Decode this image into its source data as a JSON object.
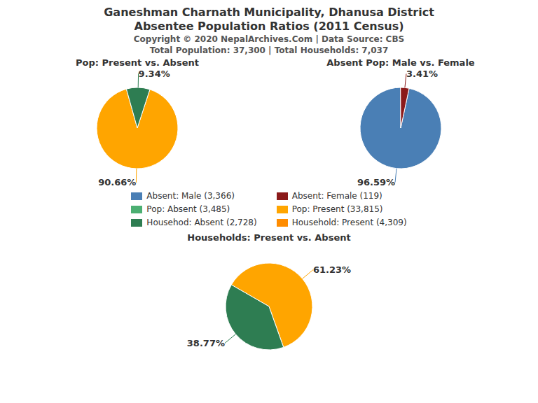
{
  "title": "Ganeshman Charnath Municipality, Dhanusa District\nAbsentee Population Ratios (2011 Census)",
  "annotations": [
    "Copyright © 2020 NepalArchives.Com | Data Source: CBS",
    "Total Population: 37,300 | Total Households: 7,037"
  ],
  "series": [
    {
      "name": "Absent: Male (3,366)",
      "color": "#4A7FB5"
    },
    {
      "name": "Absent: Female (119)",
      "color": "#8B1A1A"
    },
    {
      "name": "Pop: Absent (3,485)",
      "color": "#4CAF72"
    },
    {
      "name": "Pop: Present (33,815)",
      "color": "#FFA500"
    },
    {
      "name": "Househod: Absent (2,728)",
      "color": "#2E7D52"
    },
    {
      "name": "Household: Present (4,309)",
      "color": "#FF8C00"
    }
  ],
  "chart_data": [
    {
      "type": "pie",
      "title": "Pop: Present vs. Absent",
      "values": [
        90.66,
        9.34
      ],
      "value_labels": [
        "90.66%",
        "9.34%"
      ],
      "colors": [
        "#FFA500",
        "#2E7D52"
      ],
      "data_labels": true
    },
    {
      "type": "pie",
      "title": "Absent Pop: Male vs. Female",
      "values": [
        96.59,
        3.41
      ],
      "value_labels": [
        "96.59%",
        "3.41%"
      ],
      "colors": [
        "#4A7FB5",
        "#8B1A1A"
      ],
      "data_labels": true
    },
    {
      "type": "pie",
      "title": "Households: Present vs. Absent",
      "values": [
        61.23,
        38.77
      ],
      "value_labels": [
        "61.23%",
        "38.77%"
      ],
      "colors": [
        "#FFA500",
        "#2E7D52"
      ],
      "data_labels": true
    }
  ]
}
